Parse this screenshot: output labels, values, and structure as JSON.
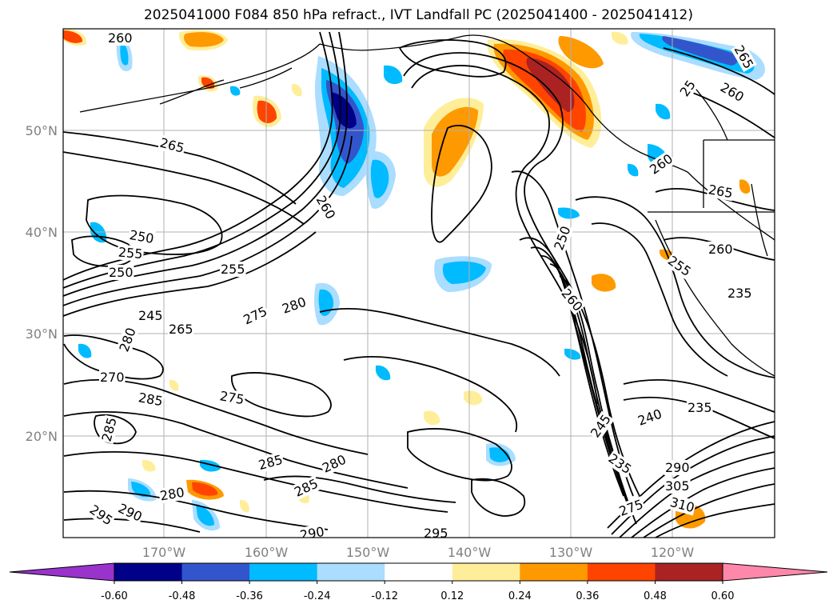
{
  "title": "2025041000 F084 850 hPa refract., IVT Landfall PC (2025041400 - 2025041412)",
  "latitude_labels": [
    "50°N",
    "40°N",
    "30°N",
    "20°N"
  ],
  "longitude_labels": [
    "170°W",
    "160°W",
    "150°W",
    "140°W",
    "130°W",
    "120°W"
  ],
  "colorbar": {
    "tick_labels": [
      "-0.60",
      "-0.48",
      "-0.36",
      "-0.24",
      "-0.12",
      "0.12",
      "0.24",
      "0.36",
      "0.48",
      "0.60"
    ],
    "under_color": "#9933cc",
    "over_color": "#ff88aa",
    "bin_colors": [
      "#000088",
      "#3355cc",
      "#00bbff",
      "#aaddff",
      "#ffffff",
      "#ffee99",
      "#ff9900",
      "#ff4400",
      "#aa2222"
    ]
  },
  "contour_labels": [
    "260",
    "265",
    "250",
    "255",
    "250",
    "255",
    "245",
    "265",
    "280",
    "270",
    "285",
    "285",
    "275",
    "275",
    "280",
    "260",
    "280",
    "285",
    "285",
    "280",
    "290",
    "295",
    "290",
    "295",
    "265",
    "25",
    "260",
    "250",
    "265",
    "260",
    "255",
    "260",
    "235",
    "245",
    "240",
    "235",
    "235",
    "290",
    "305",
    "310",
    "275",
    "260"
  ]
}
